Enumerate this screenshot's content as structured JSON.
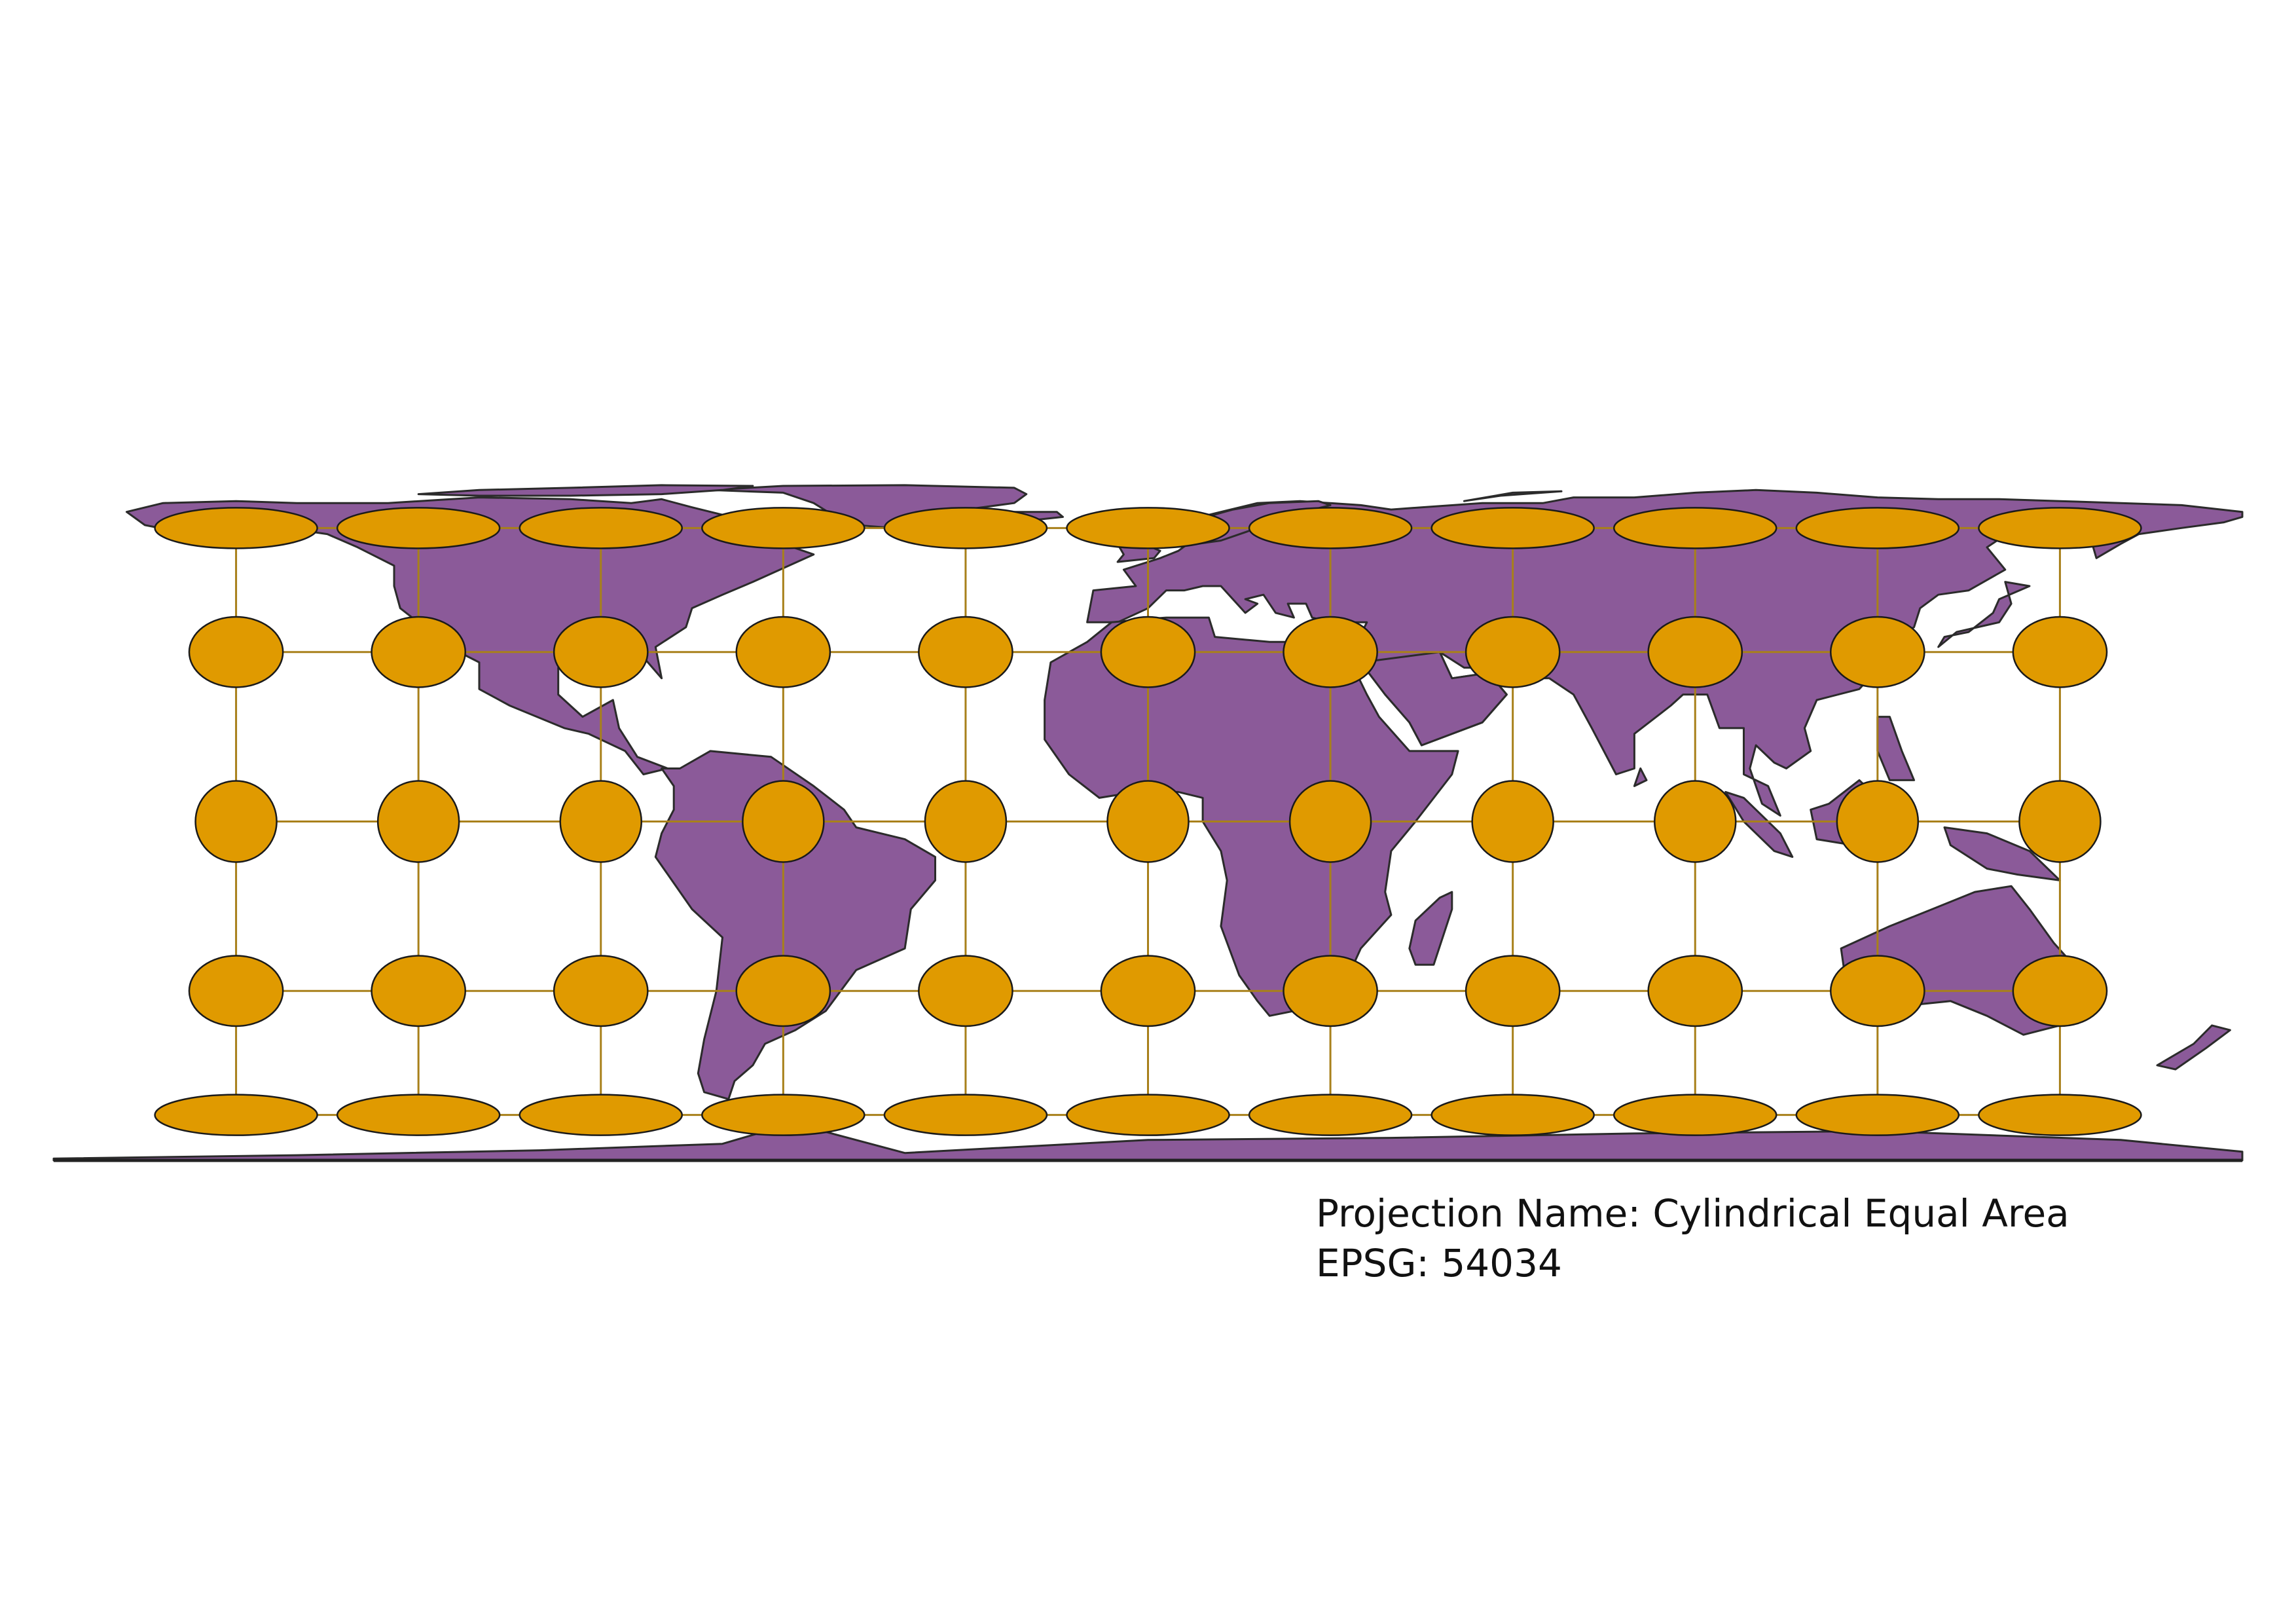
{
  "map": {
    "projection_name_line": "Projection Name: Cylindrical Equal Area",
    "epsg_line": "EPSG: 54034",
    "colors": {
      "land": "#8b5a99",
      "border": "#2b2b2b",
      "indicatrix": "#e09a00",
      "graticule": "#a8801a",
      "background": "#ffffff"
    },
    "graticule": {
      "longitudes": [
        -150,
        -120,
        -90,
        -60,
        -30,
        0,
        30,
        60,
        90,
        120,
        150
      ],
      "latitudes": [
        60,
        30,
        0,
        -30,
        -60
      ]
    },
    "indicatrix_type": "Tissot indicatrix (equal-area, distortion shown as shape)"
  }
}
